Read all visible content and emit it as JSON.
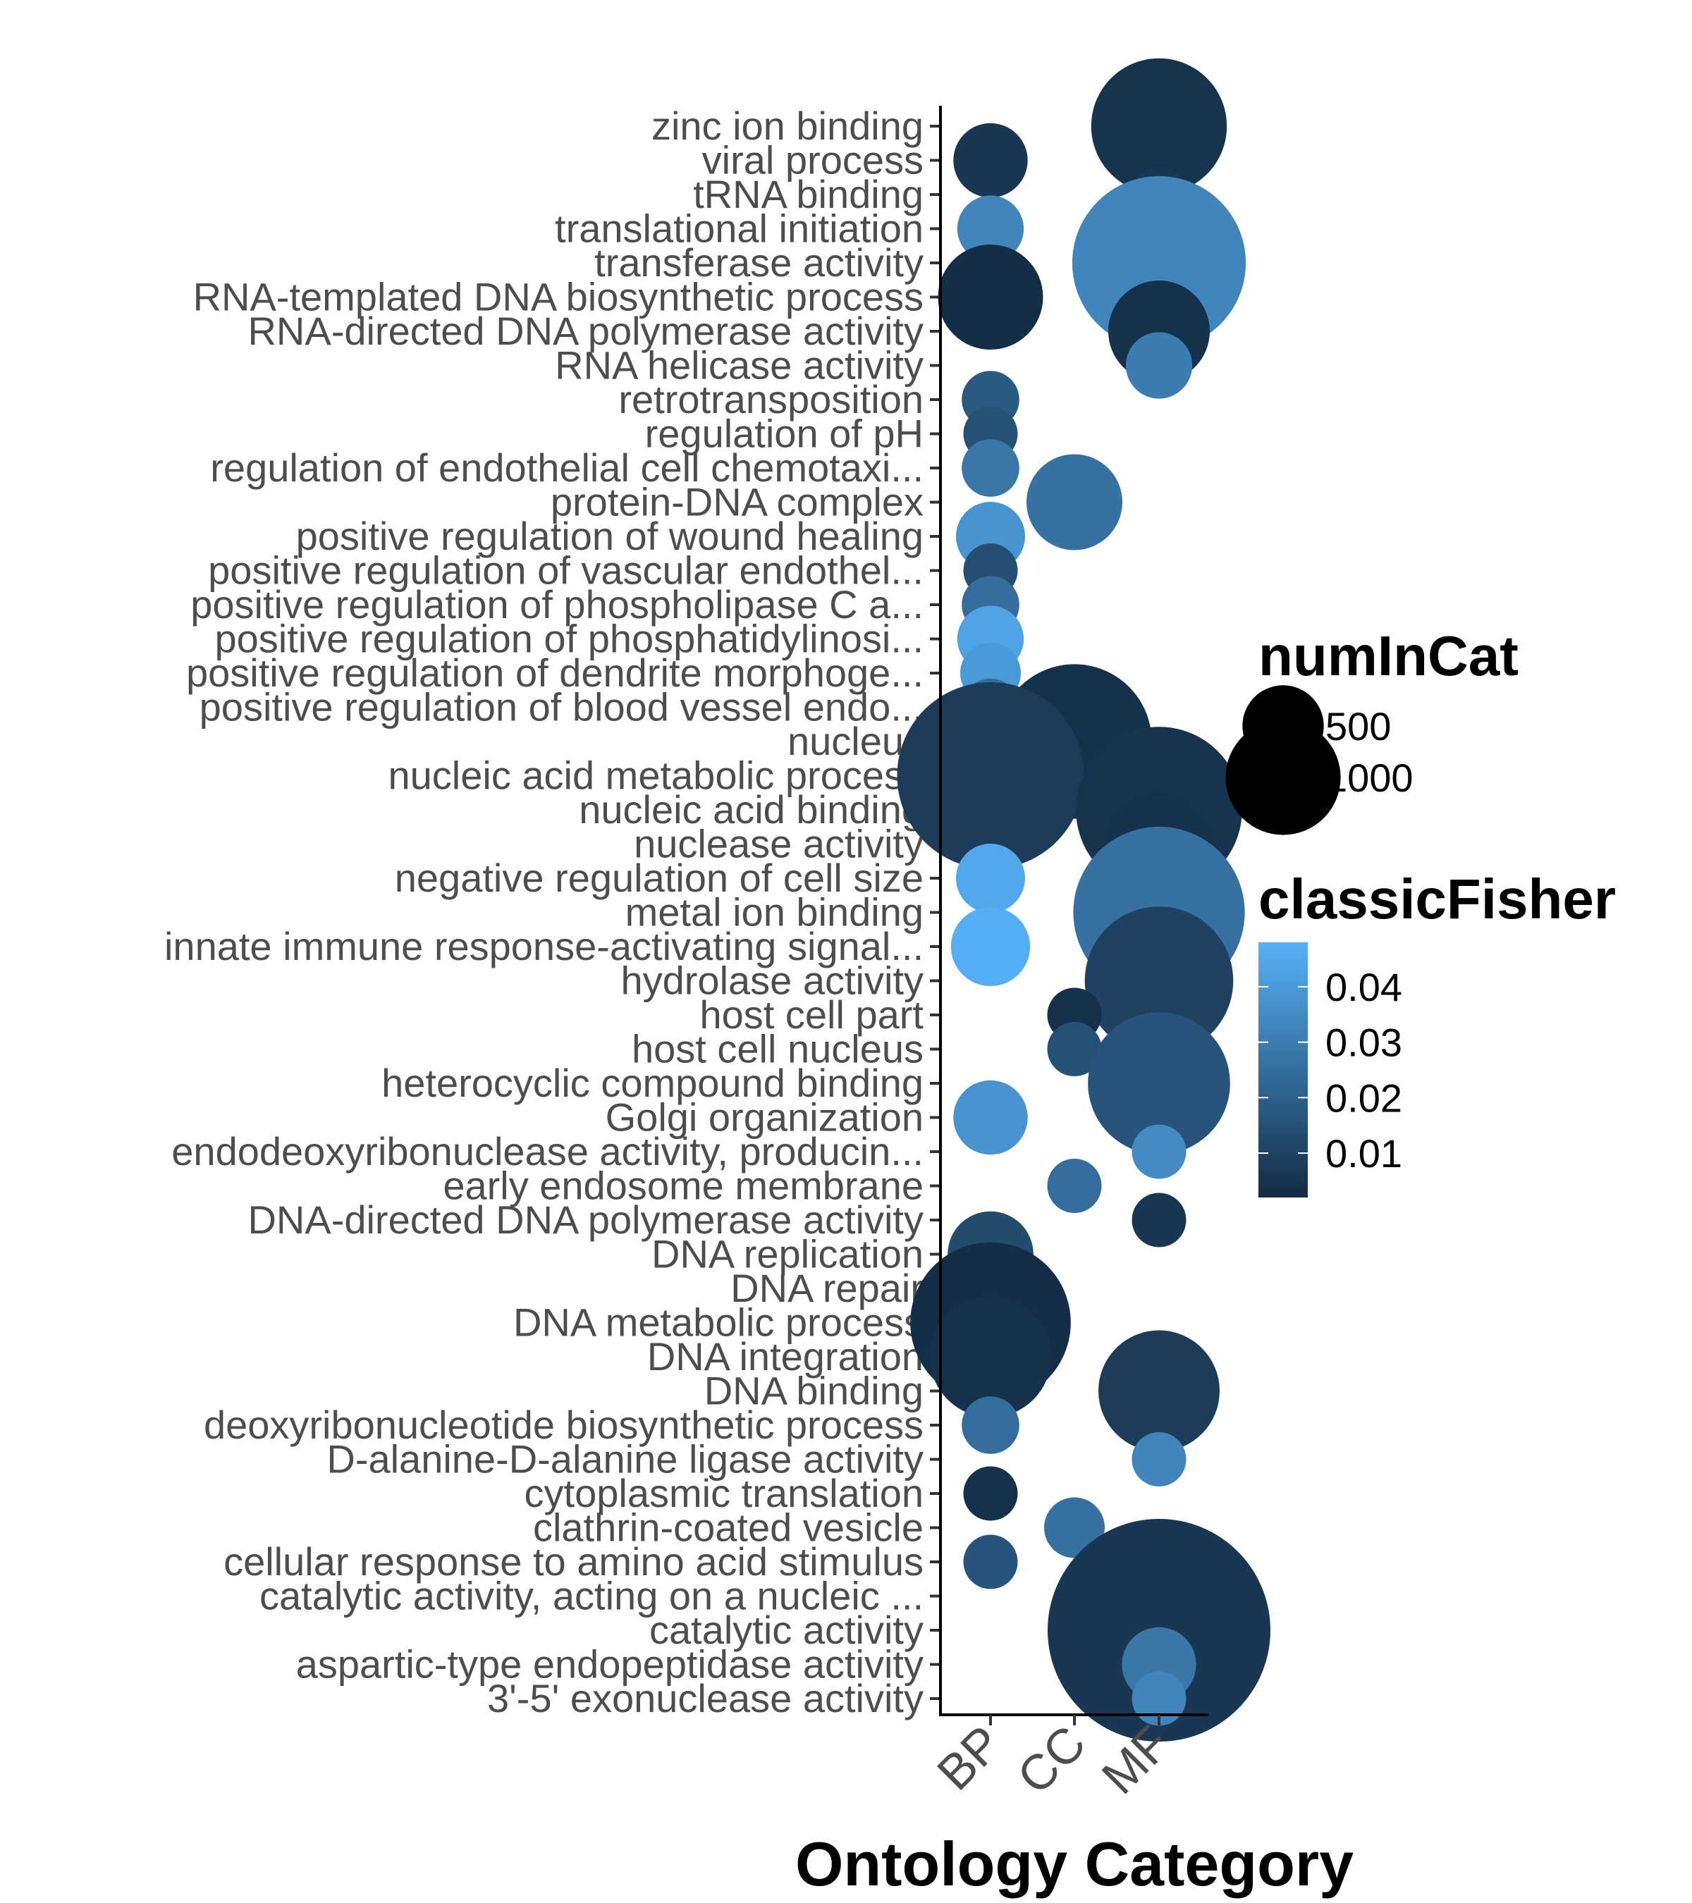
{
  "chart_data": {
    "type": "scatter",
    "xlabel": "Ontology Category",
    "ylabel": "",
    "categories_x": [
      "BP",
      "CC",
      "MF"
    ],
    "terms": [
      "zinc ion binding",
      "viral process",
      "tRNA binding",
      "translational initiation",
      "transferase activity",
      "RNA-templated DNA biosynthetic process",
      "RNA-directed DNA polymerase activity",
      "RNA helicase activity",
      "retrotransposition",
      "regulation of pH",
      "regulation of endothelial cell chemotaxi...",
      "protein-DNA complex",
      "positive regulation of wound healing",
      "positive regulation of vascular endothel...",
      "positive regulation of phospholipase C a...",
      "positive regulation of phosphatidylinosi...",
      "positive regulation of dendrite morphoge...",
      "positive regulation of blood vessel endo...",
      "nucleus",
      "nucleic acid metabolic process",
      "nucleic acid binding",
      "nuclease activity",
      "negative regulation of cell size",
      "metal ion binding",
      "innate immune response-activating signal...",
      "hydrolase activity",
      "host cell part",
      "host cell nucleus",
      "heterocyclic compound binding",
      "Golgi organization",
      "endodeoxyribonuclease activity, producin...",
      "early endosome membrane",
      "DNA-directed DNA polymerase activity",
      "DNA replication",
      "DNA repair",
      "DNA metabolic process",
      "DNA integration",
      "DNA binding",
      "deoxyribonucleotide biosynthetic process",
      "D-alanine-D-alanine ligase activity",
      "cytoplasmic translation",
      "clathrin-coated vesicle",
      "cellular response to amino acid stimulus",
      "catalytic activity, acting on a nucleic ...",
      "catalytic activity",
      "aspartic-type endopeptidase activity",
      "3'-5' exonuclease activity"
    ],
    "points": [
      {
        "term": "zinc ion binding",
        "category": "MF",
        "numInCat": 500,
        "classicFisher": 0.005
      },
      {
        "term": "viral process",
        "category": "BP",
        "numInCat": 150,
        "classicFisher": 0.006
      },
      {
        "term": "tRNA binding",
        "category": "MF",
        "numInCat": 80,
        "classicFisher": 0.006
      },
      {
        "term": "translational initiation",
        "category": "BP",
        "numInCat": 120,
        "classicFisher": 0.033
      },
      {
        "term": "transferase activity",
        "category": "MF",
        "numInCat": 820,
        "classicFisher": 0.033
      },
      {
        "term": "RNA-templated DNA biosynthetic process",
        "category": "BP",
        "numInCat": 300,
        "classicFisher": 0.003
      },
      {
        "term": "RNA-directed DNA polymerase activity",
        "category": "MF",
        "numInCat": 280,
        "classicFisher": 0.004
      },
      {
        "term": "RNA helicase activity",
        "category": "MF",
        "numInCat": 120,
        "classicFisher": 0.03
      },
      {
        "term": "retrotransposition",
        "category": "BP",
        "numInCat": 90,
        "classicFisher": 0.018
      },
      {
        "term": "regulation of pH",
        "category": "BP",
        "numInCat": 80,
        "classicFisher": 0.015
      },
      {
        "term": "regulation of endothelial cell chemotaxi...",
        "category": "BP",
        "numInCat": 90,
        "classicFisher": 0.028
      },
      {
        "term": "protein-DNA complex",
        "category": "CC",
        "numInCat": 250,
        "classicFisher": 0.026
      },
      {
        "term": "positive regulation of wound healing",
        "category": "BP",
        "numInCat": 130,
        "classicFisher": 0.038
      },
      {
        "term": "positive regulation of vascular endothel...",
        "category": "BP",
        "numInCat": 80,
        "classicFisher": 0.014
      },
      {
        "term": "positive regulation of phospholipase C a...",
        "category": "BP",
        "numInCat": 90,
        "classicFisher": 0.025
      },
      {
        "term": "positive regulation of phosphatidylinosi...",
        "category": "BP",
        "numInCat": 120,
        "classicFisher": 0.043
      },
      {
        "term": "positive regulation of dendrite morphoge...",
        "category": "BP",
        "numInCat": 100,
        "classicFisher": 0.04
      },
      {
        "term": "positive regulation of blood vessel endo...",
        "category": "BP",
        "numInCat": 90,
        "classicFisher": 0.025
      },
      {
        "term": "nucleus",
        "category": "CC",
        "numInCat": 650,
        "classicFisher": 0.004
      },
      {
        "term": "nucleic acid metabolic process",
        "category": "BP",
        "numInCat": 950,
        "classicFisher": 0.008
      },
      {
        "term": "nucleic acid binding",
        "category": "MF",
        "numInCat": 750,
        "classicFisher": 0.005
      },
      {
        "term": "nuclease activity",
        "category": "MF",
        "numInCat": 300,
        "classicFisher": 0.004
      },
      {
        "term": "negative regulation of cell size",
        "category": "BP",
        "numInCat": 130,
        "classicFisher": 0.045
      },
      {
        "term": "metal ion binding",
        "category": "MF",
        "numInCat": 800,
        "classicFisher": 0.026
      },
      {
        "term": "innate immune response-activating signal...",
        "category": "BP",
        "numInCat": 170,
        "classicFisher": 0.047
      },
      {
        "term": "hydrolase activity",
        "category": "MF",
        "numInCat": 600,
        "classicFisher": 0.01
      },
      {
        "term": "host cell part",
        "category": "CC",
        "numInCat": 80,
        "classicFisher": 0.004
      },
      {
        "term": "host cell nucleus",
        "category": "CC",
        "numInCat": 80,
        "classicFisher": 0.015
      },
      {
        "term": "heterocyclic compound binding",
        "category": "MF",
        "numInCat": 550,
        "classicFisher": 0.016
      },
      {
        "term": "Golgi organization",
        "category": "BP",
        "numInCat": 150,
        "classicFisher": 0.038
      },
      {
        "term": "endodeoxyribonuclease activity, producin...",
        "category": "MF",
        "numInCat": 80,
        "classicFisher": 0.035
      },
      {
        "term": "early endosome membrane",
        "category": "CC",
        "numInCat": 80,
        "classicFisher": 0.025
      },
      {
        "term": "DNA-directed DNA polymerase activity",
        "category": "MF",
        "numInCat": 80,
        "classicFisher": 0.006
      },
      {
        "term": "DNA replication",
        "category": "BP",
        "numInCat": 200,
        "classicFisher": 0.013
      },
      {
        "term": "DNA repair",
        "category": "BP",
        "numInCat": 220,
        "classicFisher": 0.03
      },
      {
        "term": "DNA metabolic process",
        "category": "BP",
        "numInCat": 700,
        "classicFisher": 0.003
      },
      {
        "term": "DNA integration",
        "category": "BP",
        "numInCat": 400,
        "classicFisher": 0.004
      },
      {
        "term": "DNA binding",
        "category": "MF",
        "numInCat": 400,
        "classicFisher": 0.008
      },
      {
        "term": "deoxyribonucleotide biosynthetic process",
        "category": "BP",
        "numInCat": 90,
        "classicFisher": 0.025
      },
      {
        "term": "D-alanine-D-alanine ligase activity",
        "category": "MF",
        "numInCat": 80,
        "classicFisher": 0.033
      },
      {
        "term": "cytoplasmic translation",
        "category": "BP",
        "numInCat": 80,
        "classicFisher": 0.004
      },
      {
        "term": "clathrin-coated vesicle",
        "category": "CC",
        "numInCat": 100,
        "classicFisher": 0.026
      },
      {
        "term": "cellular response to amino acid stimulus",
        "category": "BP",
        "numInCat": 80,
        "classicFisher": 0.016
      },
      {
        "term": "catalytic activity, acting on a nucleic ...",
        "category": "MF",
        "numInCat": 450,
        "classicFisher": 0.016
      },
      {
        "term": "catalytic activity",
        "category": "MF",
        "numInCat": 1350,
        "classicFisher": 0.006
      },
      {
        "term": "aspartic-type endopeptidase activity",
        "category": "MF",
        "numInCat": 150,
        "classicFisher": 0.028
      },
      {
        "term": "3'-5' exonuclease activity",
        "category": "MF",
        "numInCat": 80,
        "classicFisher": 0.033
      }
    ],
    "size_legend": {
      "title": "numInCat",
      "labels": [
        "500",
        "1000"
      ],
      "values": [
        500,
        1000
      ]
    },
    "color_legend": {
      "title": "classicFisher",
      "ticks": [
        "0.04",
        "0.03",
        "0.02",
        "0.01"
      ],
      "tick_values": [
        0.04,
        0.03,
        0.02,
        0.01
      ],
      "range": [
        0.002,
        0.048
      ],
      "low_color": "#132b43",
      "high_color": "#56b1f7"
    },
    "grid": false
  }
}
